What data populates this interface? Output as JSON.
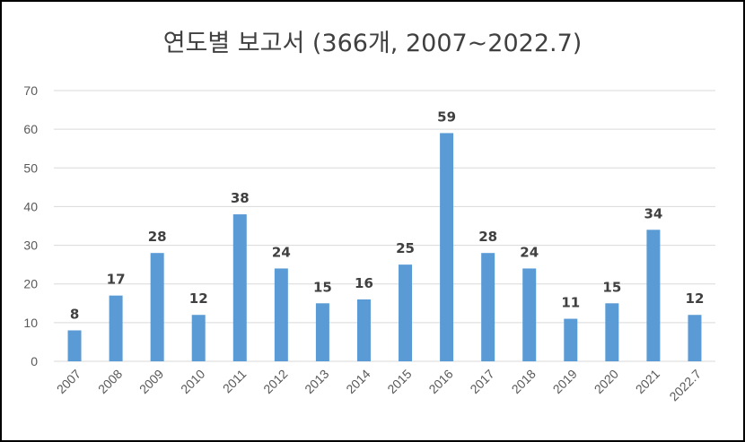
{
  "chart_data": {
    "type": "bar",
    "title": "연도별 보고서 (366개, 2007~2022.7)",
    "xlabel": "",
    "ylabel": "",
    "categories": [
      "2007",
      "2008",
      "2009",
      "2010",
      "2011",
      "2012",
      "2013",
      "2014",
      "2015",
      "2016",
      "2017",
      "2018",
      "2019",
      "2020",
      "2021",
      "2022.7"
    ],
    "values": [
      8,
      17,
      28,
      12,
      38,
      24,
      15,
      16,
      25,
      59,
      28,
      24,
      11,
      15,
      34,
      12
    ],
    "ylim": [
      0,
      70
    ],
    "yticks": [
      0,
      10,
      20,
      30,
      40,
      50,
      60,
      70
    ],
    "grid": true,
    "legend": "none",
    "bar_color": "#5b9bd5",
    "gridline_color": "#d9d9d9"
  }
}
